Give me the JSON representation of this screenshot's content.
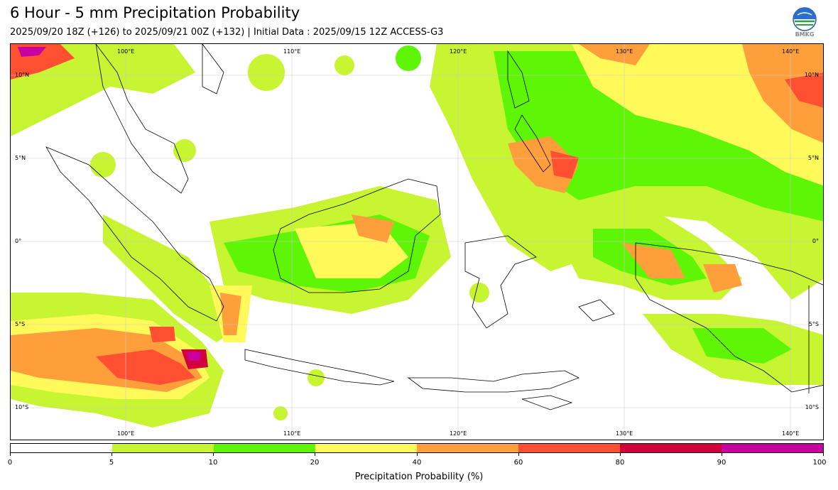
{
  "header": {
    "title": "6 Hour - 5 mm Precipitation Probability",
    "subtitle": "2025/09/20 18Z (+126) to 2025/09/21 00Z (+132) | Initial Data : 2025/09/15 12Z ACCESS-G3",
    "logo_text": "BMKG"
  },
  "map": {
    "lon_labels_top": [
      "100°E",
      "110°E",
      "120°E",
      "130°E",
      "140°E"
    ],
    "lon_labels_bottom": [
      "100°E",
      "110°E",
      "120°E",
      "130°E",
      "140°E"
    ],
    "lat_labels_left": [
      "10°N",
      "5°N",
      "0°",
      "5°S",
      "10°S"
    ],
    "lat_labels_right": [
      "10°N",
      "5°N",
      "0°",
      "5°S",
      "10°S"
    ],
    "lon_range": [
      94,
      143
    ],
    "lat_range": [
      12,
      -12
    ],
    "lon_values": [
      100,
      110,
      120,
      130,
      140
    ],
    "lat_values": [
      10,
      5,
      0,
      -5,
      -10
    ]
  },
  "colorbar": {
    "label": "Precipitation Probability (%)",
    "ticks": [
      "0",
      "5",
      "10",
      "20",
      "40",
      "60",
      "80",
      "90",
      "100"
    ],
    "colors": [
      "#ffffff",
      "#c8f532",
      "#5ef507",
      "#fffa5a",
      "#ff9f3b",
      "#ff5032",
      "#d2003c",
      "#c800a0"
    ]
  }
}
